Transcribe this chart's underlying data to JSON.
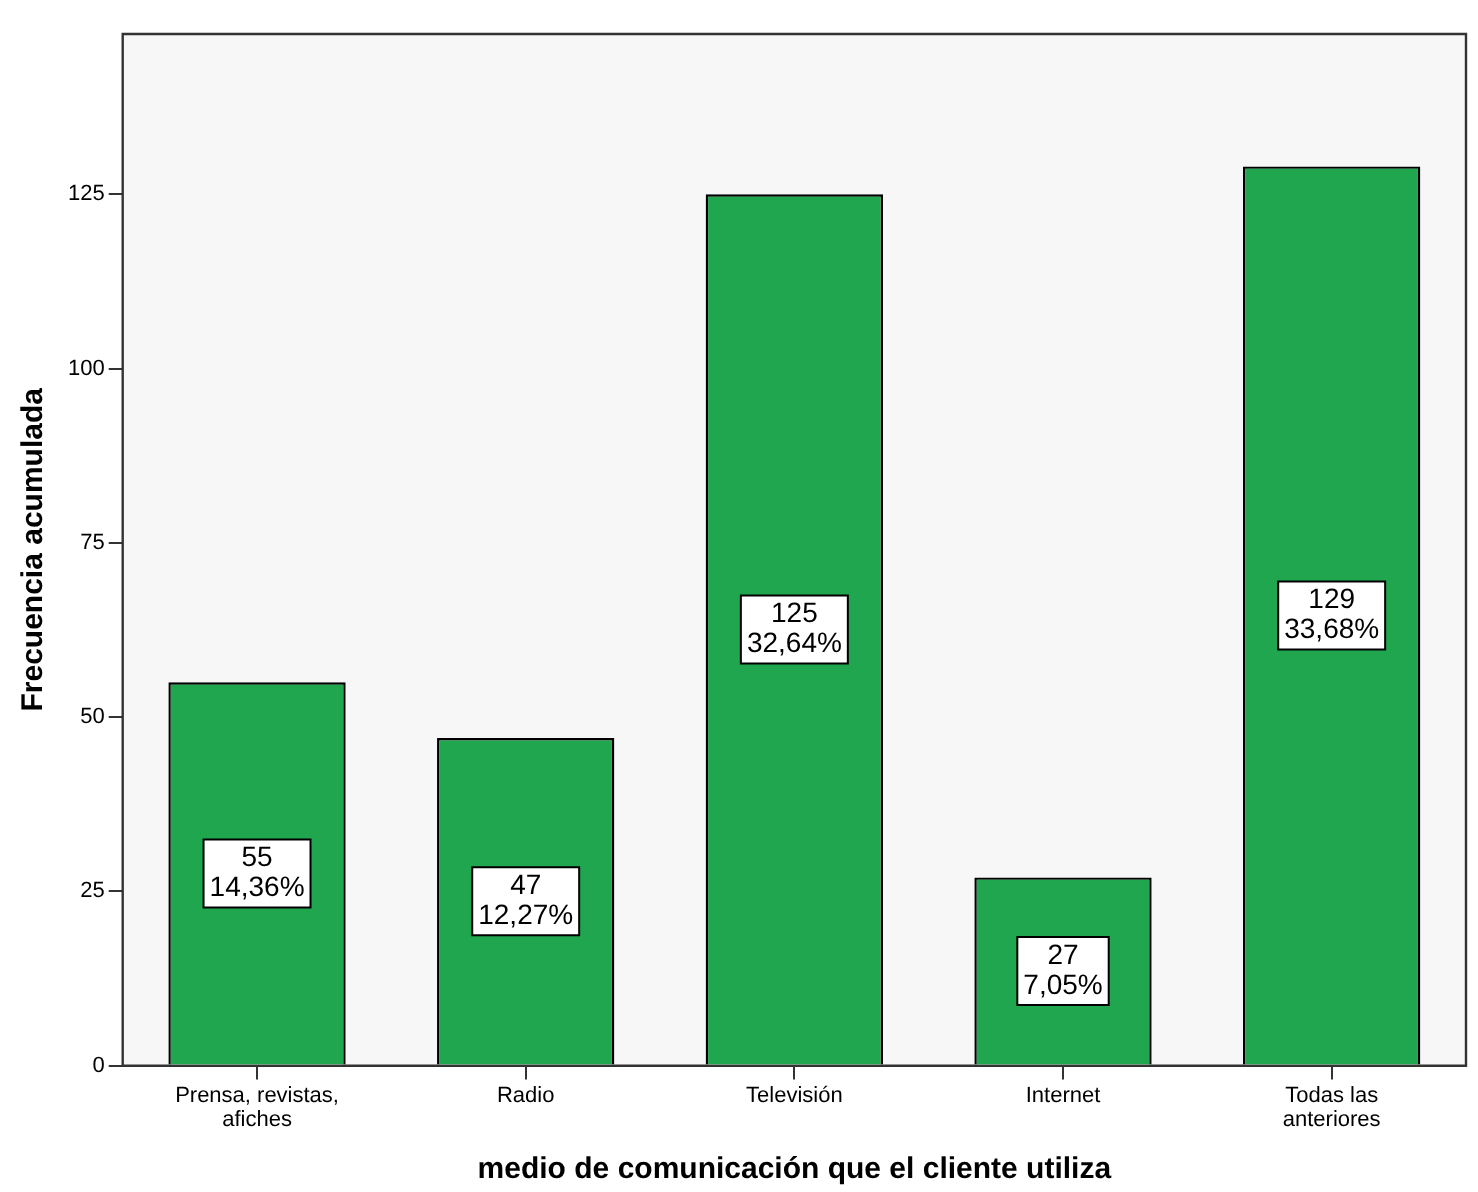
{
  "chart_data": {
    "type": "bar",
    "xlabel": "medio de comunicación que el cliente utiliza",
    "ylabel": "Frecuencia acumulada",
    "categories": [
      "Prensa, revistas, afiches",
      "Radio",
      "Televisión",
      "Internet",
      "Todas las anteriores"
    ],
    "values": [
      55,
      47,
      125,
      27,
      129
    ],
    "color": "#1fa64e",
    "value_labels": [
      "55\n14,36%",
      "47\n12,27%",
      "125\n32,64%",
      "27\n7,05%",
      "129\n33,68%"
    ],
    "ylim": [
      0,
      148
    ],
    "yticks": [
      0,
      25,
      50,
      75,
      100,
      125
    ]
  }
}
